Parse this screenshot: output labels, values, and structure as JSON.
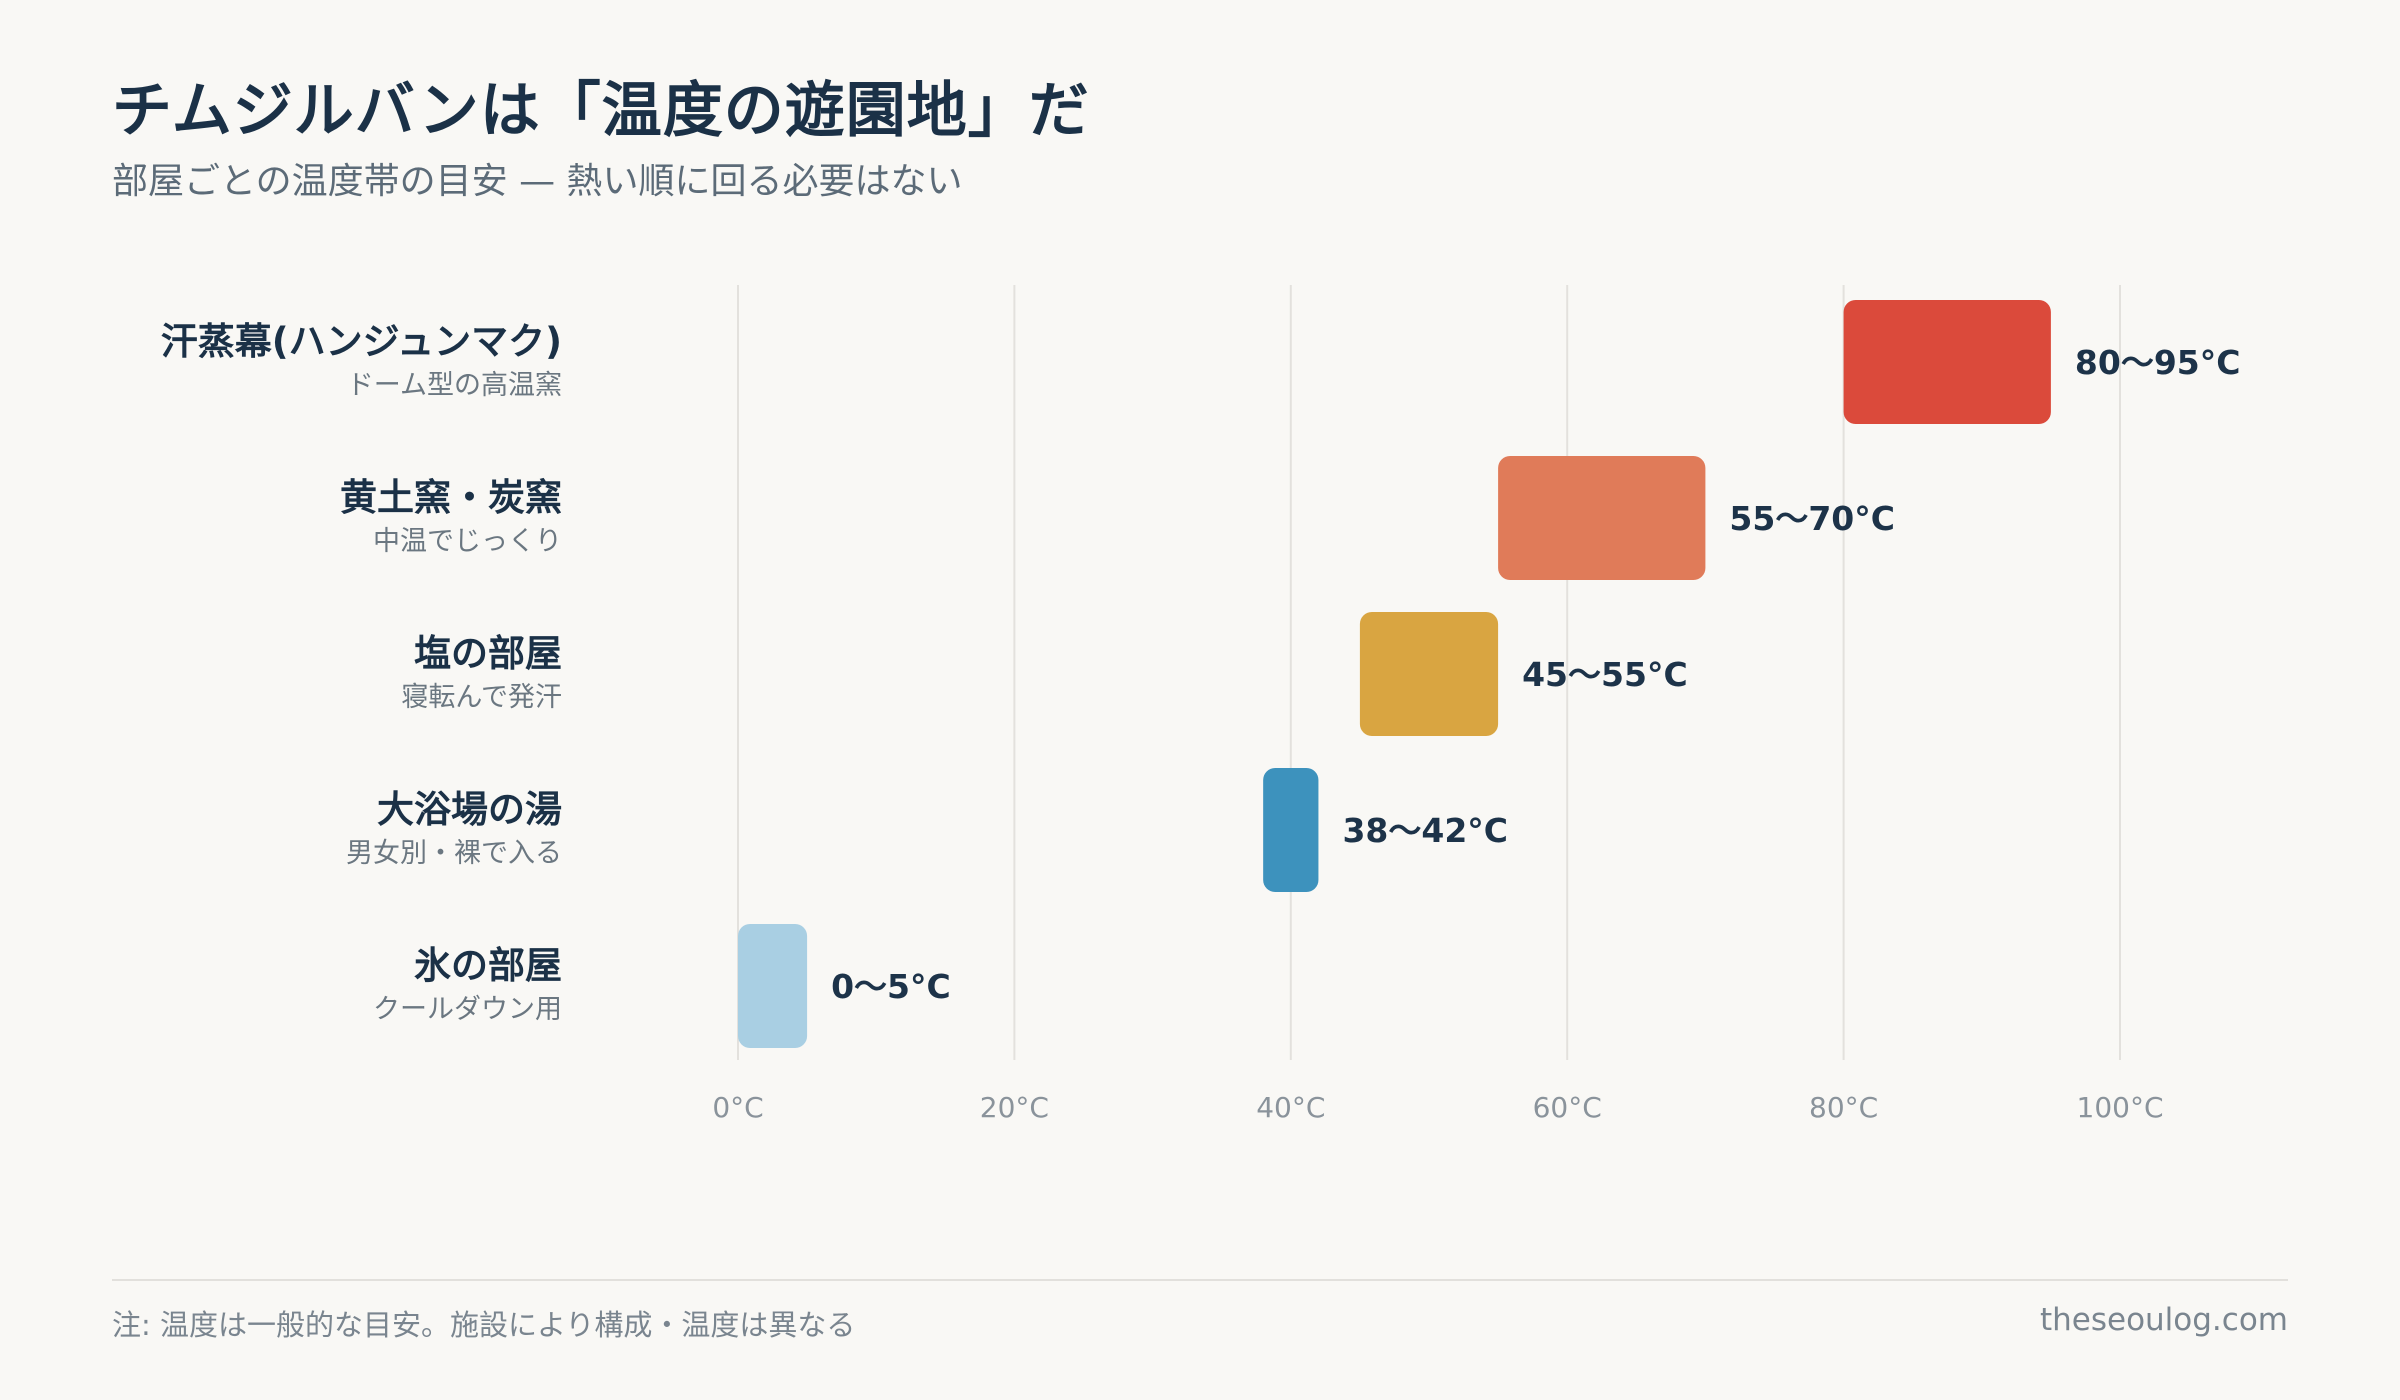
{
  "title": "チムジルバンは「温度の遊園地」だ",
  "subtitle": "部屋ごとの温度帯の目安 — 熱い順に回る必要はない",
  "footnote": "注: 温度は一般的な目安。施設により構成・温度は異なる",
  "source": "theseoulog.com",
  "chart_data": {
    "type": "bar",
    "orientation": "horizontal-range",
    "xlim": [
      0,
      100
    ],
    "x_ticks": [
      0,
      20,
      40,
      60,
      80,
      100
    ],
    "tick_labels": [
      "0°C",
      "20°C",
      "40°C",
      "60°C",
      "80°C",
      "100°C"
    ],
    "grid": true,
    "categories": [
      {
        "name": "汗蒸幕(ハンジュンマク)",
        "note": "ドーム型の高温窯",
        "low": 80,
        "high": 95,
        "label": "80〜95°C",
        "color": "#db4a3b"
      },
      {
        "name": "黄土窯・炭窯",
        "note": "中温でじっくり",
        "low": 55,
        "high": 70,
        "label": "55〜70°C",
        "color": "#e07b59"
      },
      {
        "name": "塩の部屋",
        "note": "寝転んで発汗",
        "low": 45,
        "high": 55,
        "label": "45〜55°C",
        "color": "#d9a541"
      },
      {
        "name": "大浴場の湯",
        "note": "男女別・裸で入る",
        "low": 38,
        "high": 42,
        "label": "38〜42°C",
        "color": "#3d92bd"
      },
      {
        "name": "氷の部屋",
        "note": "クールダウン用",
        "low": 0,
        "high": 5,
        "label": "0〜5°C",
        "color": "#a9cfe3"
      }
    ]
  }
}
